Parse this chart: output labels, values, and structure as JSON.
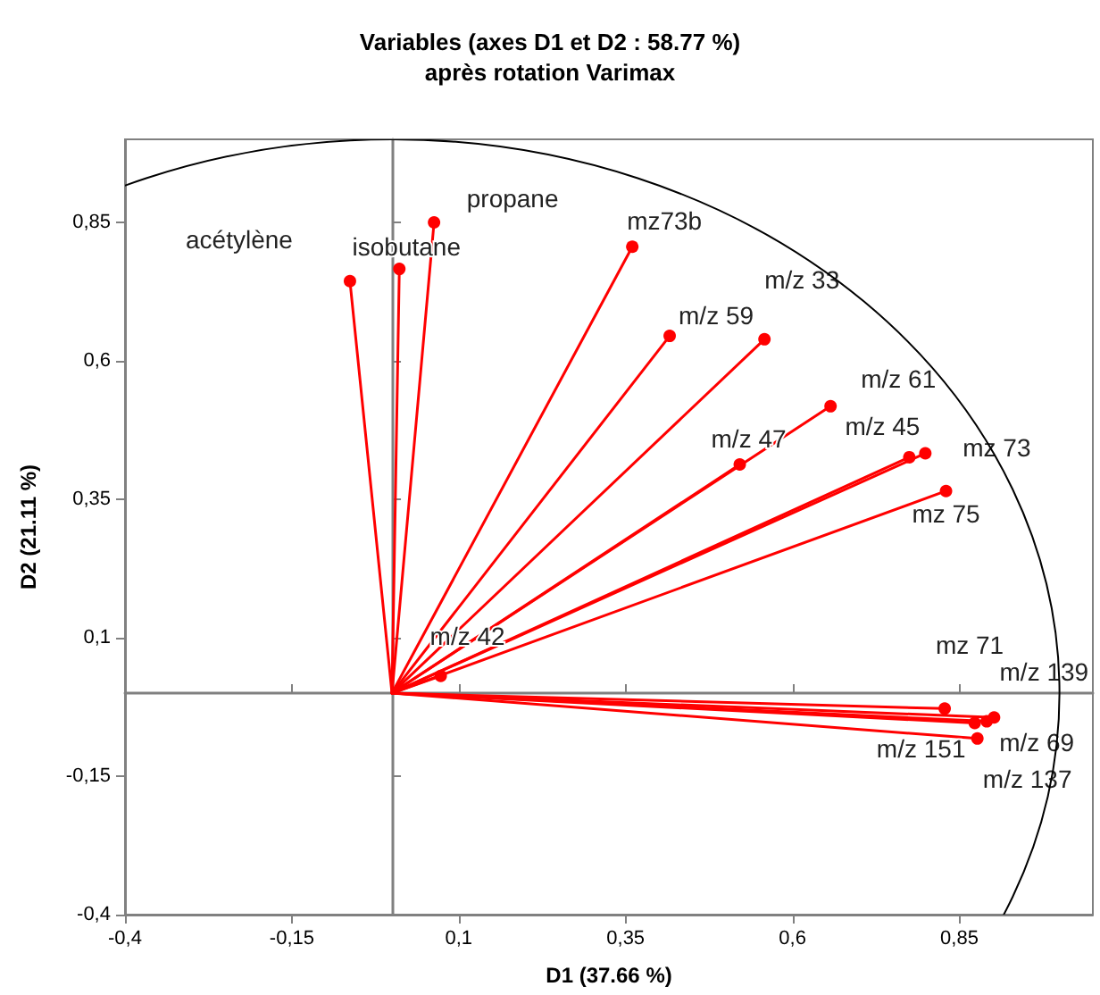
{
  "chart_data": {
    "type": "line",
    "title": "Variables (axes D1 et D2 : 58.77 %)",
    "subtitle": "après rotation Varimax",
    "xlabel": "D1 (37.66 %)",
    "ylabel": "D2 (21.11 %)",
    "xlim": [
      -0.4,
      1.05
    ],
    "ylim": [
      -0.4,
      1
    ],
    "xticks": [
      {
        "value": -0.4,
        "label": "-0,4"
      },
      {
        "value": -0.15,
        "label": "-0,15"
      },
      {
        "value": 0.1,
        "label": "0,1"
      },
      {
        "value": 0.35,
        "label": "0,35"
      },
      {
        "value": 0.6,
        "label": "0,6"
      },
      {
        "value": 0.85,
        "label": "0,85"
      }
    ],
    "yticks": [
      {
        "value": -0.4,
        "label": "-0,4"
      },
      {
        "value": -0.15,
        "label": "-0,15"
      },
      {
        "value": 0.1,
        "label": "0,1"
      },
      {
        "value": 0.35,
        "label": "0,35"
      },
      {
        "value": 0.6,
        "label": "0,6"
      },
      {
        "value": 0.85,
        "label": "0,85"
      }
    ],
    "grid": false,
    "legend": false,
    "marker": "circle",
    "line_style": "solid",
    "series": [
      {
        "name": "acétylène",
        "color": "#ff0000",
        "x": [
          0,
          -0.063
        ],
        "values": [
          0,
          0.744
        ]
      },
      {
        "name": "isobutane",
        "color": "#ff0000",
        "x": [
          0,
          0.011
        ],
        "values": [
          0,
          0.766
        ]
      },
      {
        "name": "propane",
        "color": "#ff0000",
        "x": [
          0,
          0.063
        ],
        "values": [
          0,
          0.85
        ]
      },
      {
        "name": "mz73b",
        "color": "#ff0000",
        "x": [
          0,
          0.36
        ],
        "values": [
          0,
          0.806
        ]
      },
      {
        "name": "m/z 59",
        "color": "#ff0000",
        "x": [
          0,
          0.416
        ],
        "values": [
          0,
          0.645
        ]
      },
      {
        "name": "m/z 33",
        "color": "#ff0000",
        "x": [
          0,
          0.558
        ],
        "values": [
          0,
          0.639
        ]
      },
      {
        "name": "m/z 61",
        "color": "#ff0000",
        "x": [
          0,
          0.657
        ],
        "values": [
          0,
          0.518
        ]
      },
      {
        "name": "m/z 47",
        "color": "#ff0000",
        "x": [
          0,
          0.521
        ],
        "values": [
          0,
          0.413
        ]
      },
      {
        "name": "m/z 45",
        "color": "#ff0000",
        "x": [
          0,
          0.775
        ],
        "values": [
          0,
          0.426
        ]
      },
      {
        "name": "mz 73",
        "color": "#ff0000",
        "x": [
          0,
          0.799
        ],
        "values": [
          0,
          0.433
        ]
      },
      {
        "name": "mz 75",
        "color": "#ff0000",
        "x": [
          0,
          0.83
        ],
        "values": [
          0,
          0.365
        ]
      },
      {
        "name": "m/z 42",
        "color": "#ff0000",
        "x": [
          0,
          0.073
        ],
        "values": [
          0,
          0.031
        ]
      },
      {
        "name": "mz 71",
        "color": "#ff0000",
        "x": [
          0,
          0.828
        ],
        "values": [
          0,
          -0.028
        ]
      },
      {
        "name": "m/z 139",
        "color": "#ff0000",
        "x": [
          0,
          0.902
        ],
        "values": [
          0,
          -0.044
        ]
      },
      {
        "name": "m/z 69",
        "color": "#ff0000",
        "x": [
          0,
          0.891
        ],
        "values": [
          0,
          -0.051
        ]
      },
      {
        "name": "m/z 151",
        "color": "#ff0000",
        "x": [
          0,
          0.873
        ],
        "values": [
          0,
          -0.054
        ]
      },
      {
        "name": "m/z 137",
        "color": "#ff0000",
        "x": [
          0,
          0.877
        ],
        "values": [
          0,
          -0.082
        ]
      }
    ]
  }
}
